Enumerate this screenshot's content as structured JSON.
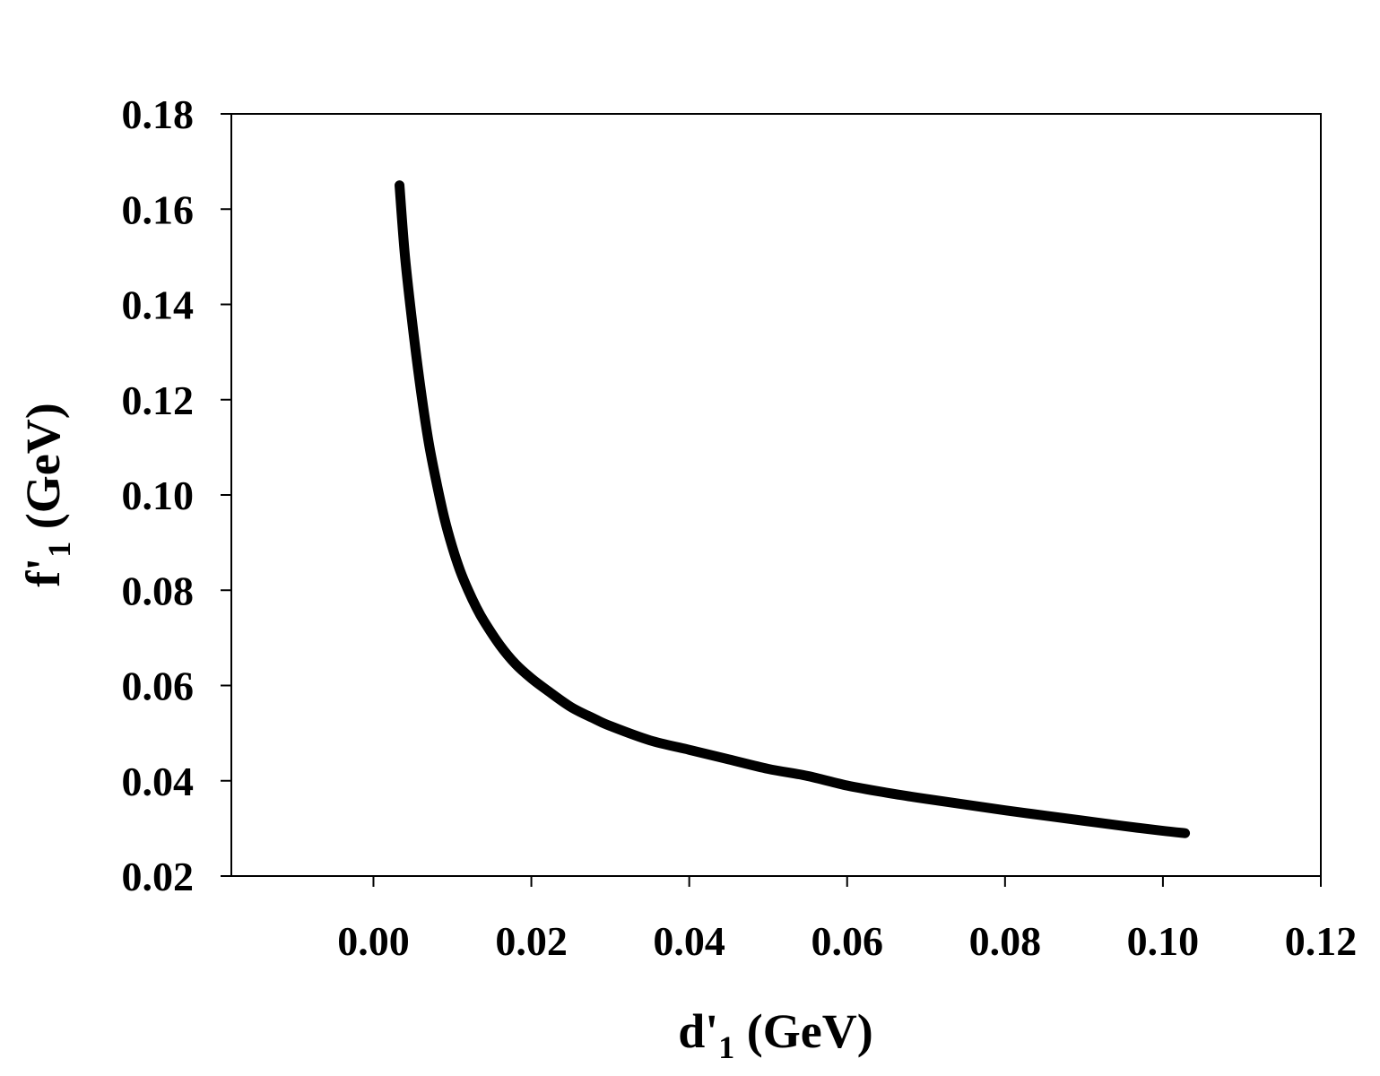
{
  "chart_data": {
    "type": "line",
    "title": "",
    "xlabel": {
      "main": "d'",
      "sub": "1",
      "unit": " (GeV)"
    },
    "ylabel": {
      "main": "f'",
      "sub": "1",
      "unit": " (GeV)"
    },
    "xlim": [
      -0.018,
      0.12
    ],
    "ylim": [
      0.02,
      0.18
    ],
    "x_ticks": [
      0.0,
      0.02,
      0.04,
      0.06,
      0.08,
      0.1,
      0.12
    ],
    "x_tick_labels": [
      "0.00",
      "0.02",
      "0.04",
      "0.06",
      "0.08",
      "0.10",
      "0.12"
    ],
    "y_ticks": [
      0.02,
      0.04,
      0.06,
      0.08,
      0.1,
      0.12,
      0.14,
      0.16,
      0.18
    ],
    "y_tick_labels": [
      "0.02",
      "0.04",
      "0.06",
      "0.08",
      "0.10",
      "0.12",
      "0.14",
      "0.16",
      "0.18"
    ],
    "grid": false,
    "legend": "none",
    "line_color": "#000000",
    "series": [
      {
        "x": [
          0.0033,
          0.004,
          0.005,
          0.006,
          0.007,
          0.008,
          0.009,
          0.01,
          0.011,
          0.012,
          0.013,
          0.014,
          0.016,
          0.018,
          0.02,
          0.022,
          0.025,
          0.028,
          0.03,
          0.035,
          0.04,
          0.045,
          0.05,
          0.055,
          0.06,
          0.065,
          0.07,
          0.075,
          0.08,
          0.085,
          0.09,
          0.095,
          0.1,
          0.1028
        ],
        "y": [
          0.165,
          0.15,
          0.135,
          0.122,
          0.111,
          0.1025,
          0.095,
          0.089,
          0.084,
          0.08,
          0.0765,
          0.0735,
          0.0685,
          0.0645,
          0.0615,
          0.059,
          0.0555,
          0.053,
          0.0515,
          0.0485,
          0.0465,
          0.0445,
          0.0425,
          0.041,
          0.039,
          0.0375,
          0.0362,
          0.035,
          0.0338,
          0.0327,
          0.0316,
          0.0305,
          0.0295,
          0.029
        ]
      }
    ]
  }
}
